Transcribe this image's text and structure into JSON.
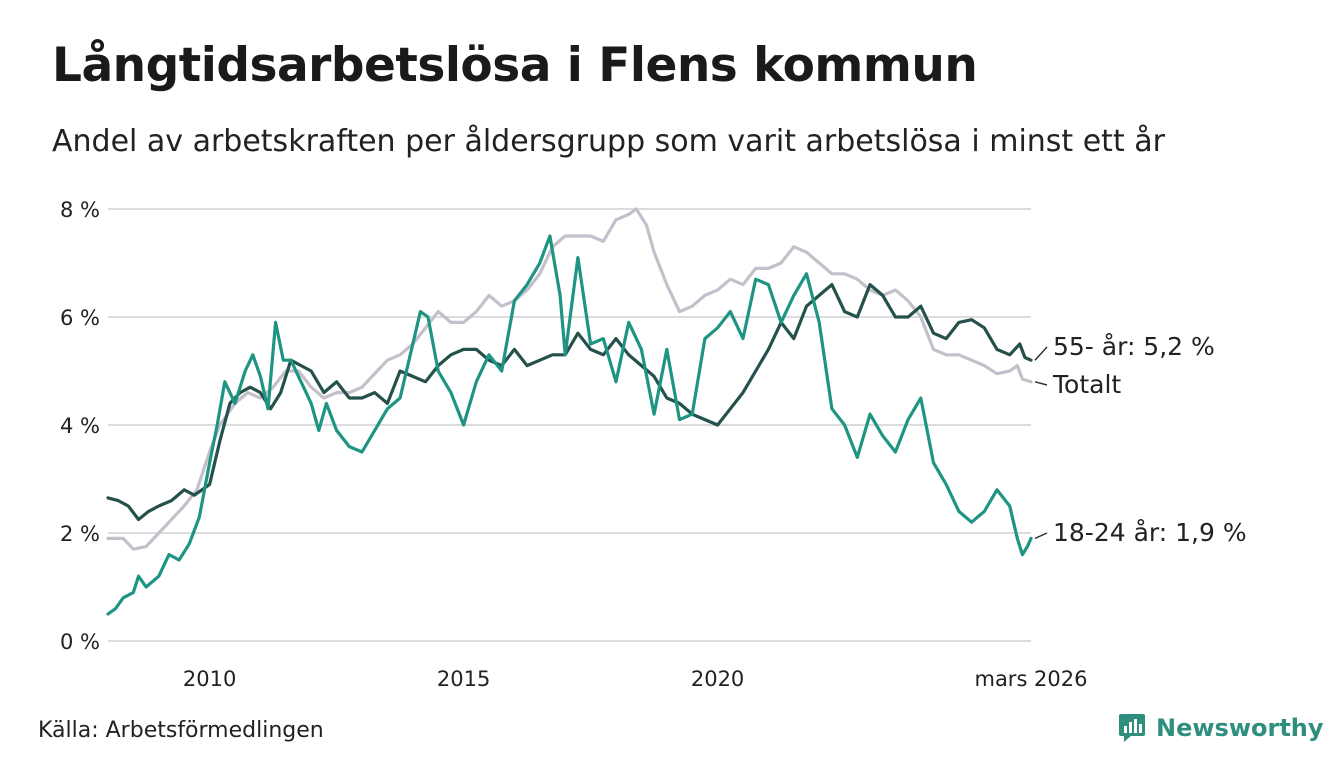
{
  "title": "Långtidsarbetslösa i Flens kommun",
  "subtitle": "Andel av arbetskraften per åldersgrupp som varit arbetslösa i minst ett år",
  "source": "Källa: Arbetsförmedlingen",
  "brand": {
    "name": "Newsworthy",
    "icon": "newsworthy-logo-icon",
    "color": "#2f8f7f"
  },
  "chart_data": {
    "type": "line",
    "title": "Långtidsarbetslösa i Flens kommun",
    "xlabel": "",
    "ylabel": "",
    "xlim": [
      2008.0,
      2026.17
    ],
    "ylim": [
      0,
      8
    ],
    "grid": true,
    "y_ticks": [
      {
        "value": 0,
        "label": "0 %"
      },
      {
        "value": 2,
        "label": "2 %"
      },
      {
        "value": 4,
        "label": "4 %"
      },
      {
        "value": 6,
        "label": "6 %"
      },
      {
        "value": 8,
        "label": "8 %"
      }
    ],
    "x_ticks": [
      {
        "value": 2010,
        "label": "2010"
      },
      {
        "value": 2015,
        "label": "2015"
      },
      {
        "value": 2020,
        "label": "2020"
      },
      {
        "value": 2026.17,
        "label": "mars 2026"
      }
    ],
    "series": [
      {
        "name": "Totalt",
        "end_label": "Totalt",
        "color": "#c3c0cb",
        "points": [
          [
            2008.0,
            1.9
          ],
          [
            2008.3,
            1.9
          ],
          [
            2008.5,
            1.7
          ],
          [
            2008.75,
            1.75
          ],
          [
            2009.0,
            2.0
          ],
          [
            2009.3,
            2.3
          ],
          [
            2009.5,
            2.5
          ],
          [
            2009.75,
            2.8
          ],
          [
            2010.0,
            3.5
          ],
          [
            2010.2,
            4.0
          ],
          [
            2010.5,
            4.4
          ],
          [
            2010.75,
            4.6
          ],
          [
            2011.0,
            4.5
          ],
          [
            2011.25,
            4.7
          ],
          [
            2011.5,
            5.0
          ],
          [
            2011.75,
            5.0
          ],
          [
            2012.0,
            4.7
          ],
          [
            2012.25,
            4.5
          ],
          [
            2012.5,
            4.6
          ],
          [
            2012.75,
            4.6
          ],
          [
            2013.0,
            4.7
          ],
          [
            2013.3,
            5.0
          ],
          [
            2013.5,
            5.2
          ],
          [
            2013.75,
            5.3
          ],
          [
            2014.0,
            5.5
          ],
          [
            2014.25,
            5.8
          ],
          [
            2014.5,
            6.1
          ],
          [
            2014.75,
            5.9
          ],
          [
            2015.0,
            5.9
          ],
          [
            2015.25,
            6.1
          ],
          [
            2015.5,
            6.4
          ],
          [
            2015.75,
            6.2
          ],
          [
            2016.0,
            6.3
          ],
          [
            2016.25,
            6.5
          ],
          [
            2016.5,
            6.8
          ],
          [
            2016.75,
            7.3
          ],
          [
            2017.0,
            7.5
          ],
          [
            2017.25,
            7.5
          ],
          [
            2017.5,
            7.5
          ],
          [
            2017.75,
            7.4
          ],
          [
            2018.0,
            7.8
          ],
          [
            2018.25,
            7.9
          ],
          [
            2018.4,
            8.0
          ],
          [
            2018.6,
            7.7
          ],
          [
            2018.75,
            7.2
          ],
          [
            2019.0,
            6.6
          ],
          [
            2019.25,
            6.1
          ],
          [
            2019.5,
            6.2
          ],
          [
            2019.75,
            6.4
          ],
          [
            2020.0,
            6.5
          ],
          [
            2020.25,
            6.7
          ],
          [
            2020.5,
            6.6
          ],
          [
            2020.75,
            6.9
          ],
          [
            2021.0,
            6.9
          ],
          [
            2021.25,
            7.0
          ],
          [
            2021.5,
            7.3
          ],
          [
            2021.75,
            7.2
          ],
          [
            2022.0,
            7.0
          ],
          [
            2022.25,
            6.8
          ],
          [
            2022.5,
            6.8
          ],
          [
            2022.75,
            6.7
          ],
          [
            2023.0,
            6.5
          ],
          [
            2023.25,
            6.4
          ],
          [
            2023.5,
            6.5
          ],
          [
            2023.75,
            6.3
          ],
          [
            2024.0,
            6.0
          ],
          [
            2024.25,
            5.4
          ],
          [
            2024.5,
            5.3
          ],
          [
            2024.75,
            5.3
          ],
          [
            2025.0,
            5.2
          ],
          [
            2025.25,
            5.1
          ],
          [
            2025.5,
            4.95
          ],
          [
            2025.75,
            5.0
          ],
          [
            2025.9,
            5.1
          ],
          [
            2026.0,
            4.85
          ],
          [
            2026.17,
            4.8
          ]
        ]
      },
      {
        "name": "55- år",
        "end_label": "55- år: 5,2 %",
        "color": "#24514c",
        "points": [
          [
            2008.0,
            2.65
          ],
          [
            2008.2,
            2.6
          ],
          [
            2008.4,
            2.5
          ],
          [
            2008.6,
            2.25
          ],
          [
            2008.8,
            2.4
          ],
          [
            2009.0,
            2.5
          ],
          [
            2009.25,
            2.6
          ],
          [
            2009.5,
            2.8
          ],
          [
            2009.7,
            2.7
          ],
          [
            2010.0,
            2.9
          ],
          [
            2010.2,
            3.7
          ],
          [
            2010.4,
            4.4
          ],
          [
            2010.6,
            4.6
          ],
          [
            2010.8,
            4.7
          ],
          [
            2011.0,
            4.6
          ],
          [
            2011.2,
            4.3
          ],
          [
            2011.4,
            4.6
          ],
          [
            2011.6,
            5.2
          ],
          [
            2011.8,
            5.1
          ],
          [
            2012.0,
            5.0
          ],
          [
            2012.25,
            4.6
          ],
          [
            2012.5,
            4.8
          ],
          [
            2012.75,
            4.5
          ],
          [
            2013.0,
            4.5
          ],
          [
            2013.25,
            4.6
          ],
          [
            2013.5,
            4.4
          ],
          [
            2013.75,
            5.0
          ],
          [
            2014.0,
            4.9
          ],
          [
            2014.25,
            4.8
          ],
          [
            2014.5,
            5.1
          ],
          [
            2014.75,
            5.3
          ],
          [
            2015.0,
            5.4
          ],
          [
            2015.25,
            5.4
          ],
          [
            2015.5,
            5.2
          ],
          [
            2015.75,
            5.1
          ],
          [
            2016.0,
            5.4
          ],
          [
            2016.25,
            5.1
          ],
          [
            2016.5,
            5.2
          ],
          [
            2016.75,
            5.3
          ],
          [
            2017.0,
            5.3
          ],
          [
            2017.25,
            5.7
          ],
          [
            2017.5,
            5.4
          ],
          [
            2017.75,
            5.3
          ],
          [
            2018.0,
            5.6
          ],
          [
            2018.25,
            5.3
          ],
          [
            2018.5,
            5.1
          ],
          [
            2018.75,
            4.9
          ],
          [
            2019.0,
            4.5
          ],
          [
            2019.25,
            4.4
          ],
          [
            2019.5,
            4.2
          ],
          [
            2019.75,
            4.1
          ],
          [
            2020.0,
            4.0
          ],
          [
            2020.25,
            4.3
          ],
          [
            2020.5,
            4.6
          ],
          [
            2020.75,
            5.0
          ],
          [
            2021.0,
            5.4
          ],
          [
            2021.25,
            5.9
          ],
          [
            2021.5,
            5.6
          ],
          [
            2021.75,
            6.2
          ],
          [
            2022.0,
            6.4
          ],
          [
            2022.25,
            6.6
          ],
          [
            2022.5,
            6.1
          ],
          [
            2022.75,
            6.0
          ],
          [
            2023.0,
            6.6
          ],
          [
            2023.25,
            6.4
          ],
          [
            2023.5,
            6.0
          ],
          [
            2023.75,
            6.0
          ],
          [
            2024.0,
            6.2
          ],
          [
            2024.25,
            5.7
          ],
          [
            2024.5,
            5.6
          ],
          [
            2024.75,
            5.9
          ],
          [
            2025.0,
            5.95
          ],
          [
            2025.25,
            5.8
          ],
          [
            2025.5,
            5.4
          ],
          [
            2025.75,
            5.3
          ],
          [
            2025.95,
            5.5
          ],
          [
            2026.05,
            5.25
          ],
          [
            2026.17,
            5.2
          ]
        ]
      },
      {
        "name": "18-24 år",
        "end_label": "18-24 år: 1,9 %",
        "color": "#1e9483",
        "points": [
          [
            2008.0,
            0.5
          ],
          [
            2008.15,
            0.6
          ],
          [
            2008.3,
            0.8
          ],
          [
            2008.5,
            0.9
          ],
          [
            2008.6,
            1.2
          ],
          [
            2008.75,
            1.0
          ],
          [
            2009.0,
            1.2
          ],
          [
            2009.2,
            1.6
          ],
          [
            2009.4,
            1.5
          ],
          [
            2009.6,
            1.8
          ],
          [
            2009.8,
            2.3
          ],
          [
            2010.0,
            3.3
          ],
          [
            2010.15,
            4.0
          ],
          [
            2010.3,
            4.8
          ],
          [
            2010.5,
            4.4
          ],
          [
            2010.7,
            5.0
          ],
          [
            2010.85,
            5.3
          ],
          [
            2011.0,
            4.9
          ],
          [
            2011.15,
            4.3
          ],
          [
            2011.3,
            5.9
          ],
          [
            2011.45,
            5.2
          ],
          [
            2011.6,
            5.2
          ],
          [
            2011.75,
            4.9
          ],
          [
            2011.9,
            4.6
          ],
          [
            2012.0,
            4.4
          ],
          [
            2012.15,
            3.9
          ],
          [
            2012.3,
            4.4
          ],
          [
            2012.5,
            3.9
          ],
          [
            2012.75,
            3.6
          ],
          [
            2013.0,
            3.5
          ],
          [
            2013.25,
            3.9
          ],
          [
            2013.5,
            4.3
          ],
          [
            2013.75,
            4.5
          ],
          [
            2014.0,
            5.5
          ],
          [
            2014.15,
            6.1
          ],
          [
            2014.3,
            6.0
          ],
          [
            2014.5,
            5.0
          ],
          [
            2014.75,
            4.6
          ],
          [
            2015.0,
            4.0
          ],
          [
            2015.25,
            4.8
          ],
          [
            2015.5,
            5.3
          ],
          [
            2015.75,
            5.0
          ],
          [
            2016.0,
            6.3
          ],
          [
            2016.25,
            6.6
          ],
          [
            2016.5,
            7.0
          ],
          [
            2016.7,
            7.5
          ],
          [
            2016.9,
            6.4
          ],
          [
            2017.0,
            5.3
          ],
          [
            2017.25,
            7.1
          ],
          [
            2017.5,
            5.5
          ],
          [
            2017.75,
            5.6
          ],
          [
            2018.0,
            4.8
          ],
          [
            2018.25,
            5.9
          ],
          [
            2018.5,
            5.4
          ],
          [
            2018.75,
            4.2
          ],
          [
            2019.0,
            5.4
          ],
          [
            2019.25,
            4.1
          ],
          [
            2019.5,
            4.2
          ],
          [
            2019.75,
            5.6
          ],
          [
            2020.0,
            5.8
          ],
          [
            2020.25,
            6.1
          ],
          [
            2020.5,
            5.6
          ],
          [
            2020.75,
            6.7
          ],
          [
            2021.0,
            6.6
          ],
          [
            2021.25,
            5.9
          ],
          [
            2021.5,
            6.4
          ],
          [
            2021.75,
            6.8
          ],
          [
            2022.0,
            5.9
          ],
          [
            2022.25,
            4.3
          ],
          [
            2022.5,
            4.0
          ],
          [
            2022.75,
            3.4
          ],
          [
            2023.0,
            4.2
          ],
          [
            2023.25,
            3.8
          ],
          [
            2023.5,
            3.5
          ],
          [
            2023.75,
            4.1
          ],
          [
            2024.0,
            4.5
          ],
          [
            2024.25,
            3.3
          ],
          [
            2024.5,
            2.9
          ],
          [
            2024.75,
            2.4
          ],
          [
            2025.0,
            2.2
          ],
          [
            2025.25,
            2.4
          ],
          [
            2025.5,
            2.8
          ],
          [
            2025.75,
            2.5
          ],
          [
            2025.9,
            1.9
          ],
          [
            2026.0,
            1.6
          ],
          [
            2026.1,
            1.75
          ],
          [
            2026.17,
            1.9
          ]
        ]
      }
    ]
  }
}
